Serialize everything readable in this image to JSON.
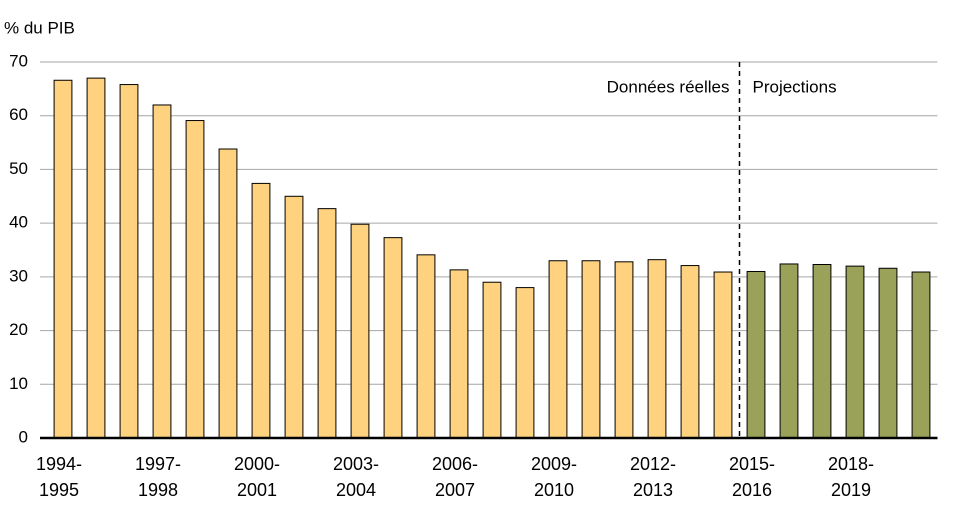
{
  "chart_data": {
    "type": "bar",
    "y_label": "% du PIB",
    "annotations": [
      "Données réelles",
      "Projections"
    ],
    "categories": [
      "1994-\n1995",
      null,
      null,
      "1997-\n1998",
      null,
      null,
      "2000-\n2001",
      null,
      null,
      "2003-\n2004",
      null,
      null,
      "2006-\n2007",
      null,
      null,
      "2009-\n2010",
      null,
      null,
      "2012-\n2013",
      null,
      null,
      "2015-\n2016",
      null,
      null,
      "2018-\n2019",
      null,
      null
    ],
    "values": [
      66.6,
      67.0,
      65.8,
      62.0,
      59.1,
      53.8,
      47.4,
      45.0,
      42.7,
      39.8,
      37.3,
      34.1,
      31.3,
      29.0,
      28.0,
      33.0,
      33.0,
      32.8,
      33.2,
      32.1,
      30.9,
      31.0,
      32.4,
      32.3,
      32.0,
      31.6,
      30.9
    ],
    "colors": [
      "#ffd27f",
      "#ffd27f",
      "#ffd27f",
      "#ffd27f",
      "#ffd27f",
      "#ffd27f",
      "#ffd27f",
      "#ffd27f",
      "#ffd27f",
      "#ffd27f",
      "#ffd27f",
      "#ffd27f",
      "#ffd27f",
      "#ffd27f",
      "#ffd27f",
      "#ffd27f",
      "#ffd27f",
      "#ffd27f",
      "#ffd27f",
      "#ffd27f",
      "#ffd27f",
      "#9aa25a",
      "#9aa25a",
      "#9aa25a",
      "#9aa25a",
      "#9aa25a",
      "#9aa25a"
    ],
    "ylim": [
      0,
      70
    ],
    "yticks": [
      0,
      10,
      20,
      30,
      40,
      50,
      60,
      70
    ],
    "grid": true
  }
}
